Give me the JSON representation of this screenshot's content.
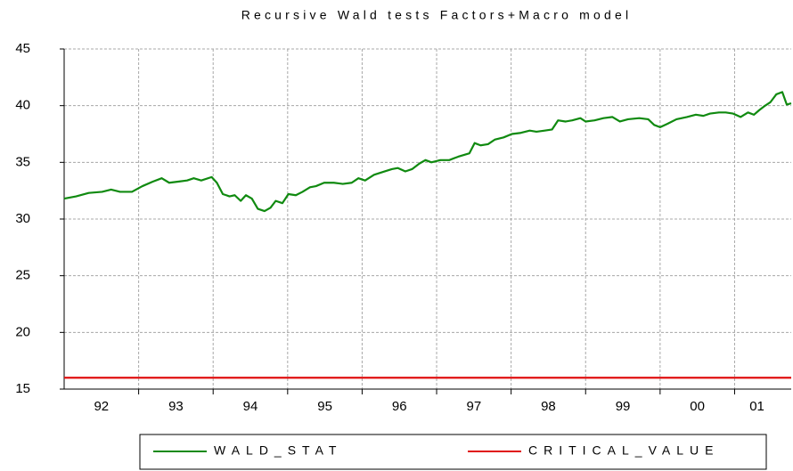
{
  "chart_data": {
    "type": "line",
    "title": "Recursive Wald tests Factors+Macro model",
    "x": [
      1992.0,
      1992.16,
      1992.33,
      1992.51,
      1992.63,
      1992.75,
      1992.91,
      1993.05,
      1993.19,
      1993.31,
      1993.41,
      1993.53,
      1993.65,
      1993.74,
      1993.84,
      1993.98,
      1994.05,
      1994.13,
      1994.22,
      1994.29,
      1994.37,
      1994.44,
      1994.52,
      1994.6,
      1994.69,
      1994.77,
      1994.84,
      1994.93,
      1995.01,
      1995.11,
      1995.2,
      1995.3,
      1995.38,
      1995.49,
      1995.62,
      1995.74,
      1995.86,
      1995.95,
      1996.04,
      1996.16,
      1996.3,
      1996.4,
      1996.48,
      1996.58,
      1996.67,
      1996.77,
      1996.85,
      1996.93,
      1997.05,
      1997.17,
      1997.29,
      1997.44,
      1997.51,
      1997.59,
      1997.69,
      1997.78,
      1997.9,
      1998.01,
      1998.13,
      1998.25,
      1998.34,
      1998.45,
      1998.55,
      1998.63,
      1998.73,
      1998.82,
      1998.93,
      1999.0,
      1999.12,
      1999.24,
      1999.36,
      1999.46,
      1999.57,
      1999.72,
      1999.84,
      1999.92,
      2000.0,
      2000.1,
      2000.22,
      2000.36,
      2000.48,
      2000.58,
      2000.67,
      2000.79,
      2000.88,
      2000.98,
      2001.08,
      2001.18,
      2001.26,
      2001.33,
      2001.41,
      2001.48,
      2001.56,
      2001.64,
      2001.7,
      2001.76
    ],
    "series": [
      {
        "name": "WALD_STAT",
        "color": "#108a10",
        "values": [
          31.8,
          32.0,
          32.3,
          32.4,
          32.6,
          32.4,
          32.4,
          32.9,
          33.3,
          33.6,
          33.2,
          33.3,
          33.4,
          33.6,
          33.4,
          33.7,
          33.2,
          32.2,
          32.0,
          32.1,
          31.6,
          32.1,
          31.8,
          30.9,
          30.7,
          31.0,
          31.6,
          31.4,
          32.2,
          32.1,
          32.4,
          32.8,
          32.9,
          33.2,
          33.2,
          33.1,
          33.2,
          33.6,
          33.4,
          33.9,
          34.2,
          34.4,
          34.5,
          34.2,
          34.4,
          34.9,
          35.2,
          35.0,
          35.2,
          35.2,
          35.5,
          35.8,
          36.7,
          36.5,
          36.6,
          37.0,
          37.2,
          37.5,
          37.6,
          37.8,
          37.7,
          37.8,
          37.9,
          38.7,
          38.6,
          38.7,
          38.9,
          38.6,
          38.7,
          38.9,
          39.0,
          38.6,
          38.8,
          38.9,
          38.8,
          38.3,
          38.1,
          38.4,
          38.8,
          39.0,
          39.2,
          39.1,
          39.3,
          39.4,
          39.4,
          39.3,
          39.0,
          39.4,
          39.2,
          39.6,
          40.0,
          40.3,
          41.0,
          41.2,
          40.1,
          40.2
        ]
      },
      {
        "name": "CRITICAL_VALUE",
        "color": "#e01010",
        "values": [
          16,
          16,
          16,
          16,
          16,
          16,
          16,
          16,
          16,
          16,
          16,
          16,
          16,
          16,
          16,
          16,
          16,
          16,
          16,
          16,
          16,
          16,
          16,
          16,
          16,
          16,
          16,
          16,
          16,
          16,
          16,
          16,
          16,
          16,
          16,
          16,
          16,
          16,
          16,
          16,
          16,
          16,
          16,
          16,
          16,
          16,
          16,
          16,
          16,
          16,
          16,
          16,
          16,
          16,
          16,
          16,
          16,
          16,
          16,
          16,
          16,
          16,
          16,
          16,
          16,
          16,
          16,
          16,
          16,
          16,
          16,
          16,
          16,
          16,
          16,
          16,
          16,
          16,
          16,
          16,
          16,
          16,
          16,
          16,
          16,
          16,
          16,
          16,
          16,
          16,
          16,
          16,
          16,
          16,
          16,
          16
        ]
      }
    ],
    "xlim": [
      1992.0,
      2001.76
    ],
    "xticks": [
      {
        "value": 1992.5,
        "label": "92"
      },
      {
        "value": 1993.5,
        "label": "93"
      },
      {
        "value": 1994.5,
        "label": "94"
      },
      {
        "value": 1995.5,
        "label": "95"
      },
      {
        "value": 1996.5,
        "label": "96"
      },
      {
        "value": 1997.5,
        "label": "97"
      },
      {
        "value": 1998.5,
        "label": "98"
      },
      {
        "value": 1999.5,
        "label": "99"
      },
      {
        "value": 2000.5,
        "label": "00"
      },
      {
        "value": 2001.3,
        "label": "01"
      }
    ],
    "xgrid": [
      1993,
      1994,
      1995,
      1996,
      1997,
      1998,
      1999,
      2000,
      2001
    ],
    "ylim": [
      15,
      45
    ],
    "yticks": [
      15,
      20,
      25,
      30,
      35,
      40,
      45
    ],
    "grid": true
  }
}
